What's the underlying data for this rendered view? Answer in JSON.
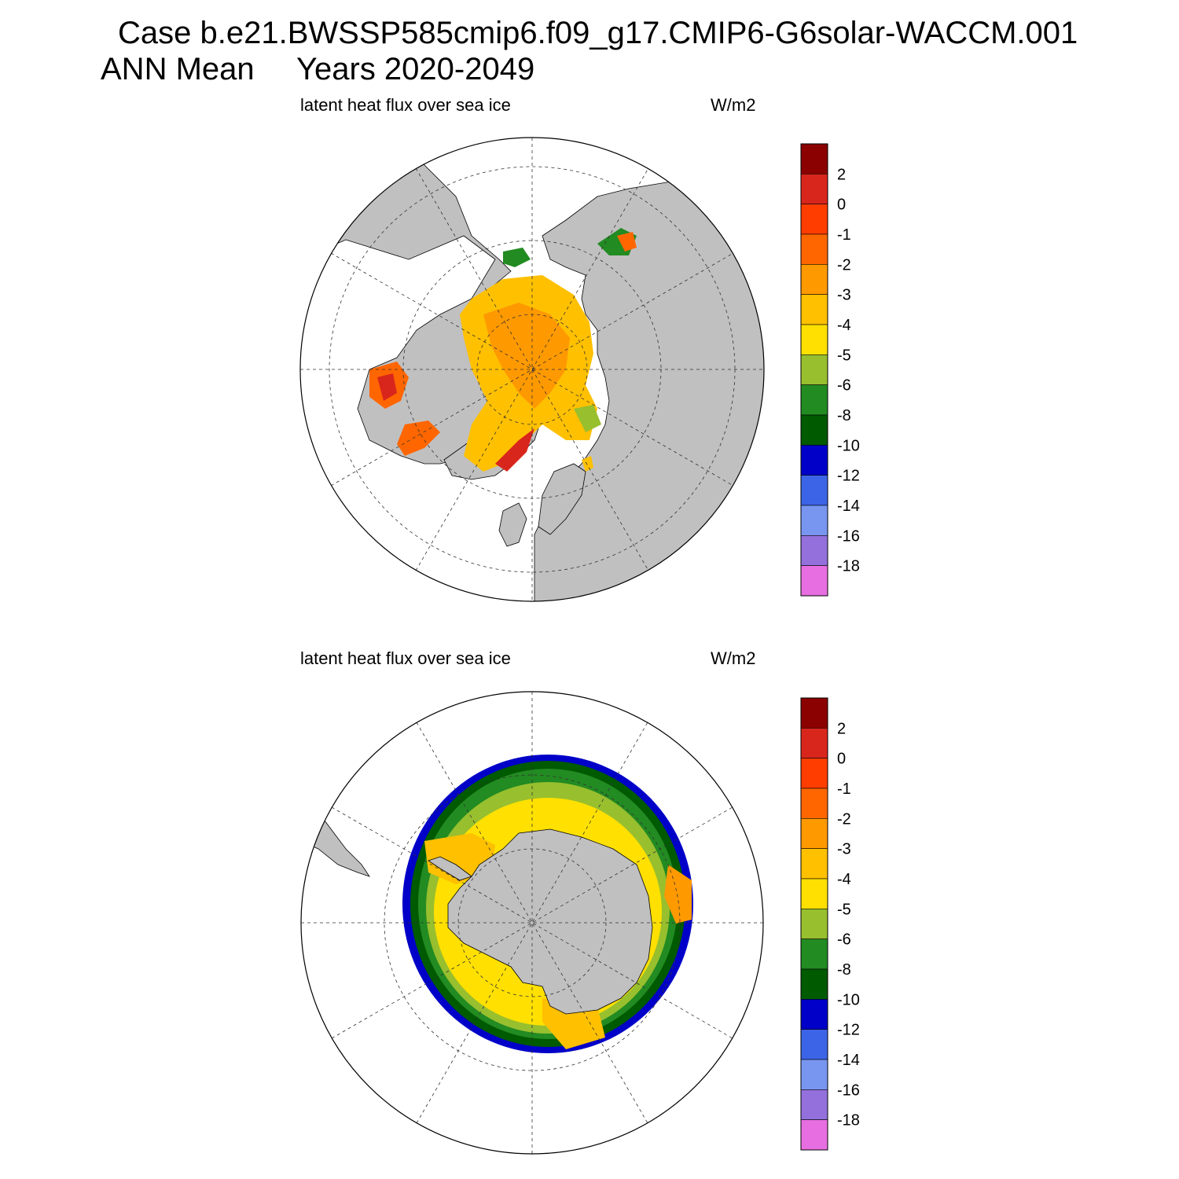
{
  "header": {
    "case_line": "Case b.e21.BWSSP585cmip6.f09_g17.CMIP6-G6solar-WACCM.001",
    "season": "ANN Mean",
    "years": "Years 2020-2049"
  },
  "colors": {
    "land": "#c0c0c0",
    "grid": "#333333"
  },
  "chart_data": [
    {
      "type": "heatmap",
      "projection": "polar stereographic",
      "hemisphere": "north",
      "variable": "latent heat flux over sea ice",
      "units": "W/m2",
      "colorbar": {
        "labels": [
          "2",
          "0",
          "-1",
          "-2",
          "-3",
          "-4",
          "-5",
          "-6",
          "-8",
          "-10",
          "-12",
          "-14",
          "-16",
          "-18"
        ],
        "colors": [
          "#8b0000",
          "#d9261c",
          "#ff3d00",
          "#ff6600",
          "#ff9900",
          "#ffc000",
          "#ffe000",
          "#98bf2e",
          "#228b22",
          "#005a00",
          "#0000c8",
          "#3c64e6",
          "#7896f0",
          "#9370db",
          "#e66ee0"
        ]
      }
    },
    {
      "type": "heatmap",
      "projection": "polar stereographic",
      "hemisphere": "south",
      "variable": "latent heat flux over sea ice",
      "units": "W/m2",
      "colorbar": {
        "labels": [
          "2",
          "0",
          "-1",
          "-2",
          "-3",
          "-4",
          "-5",
          "-6",
          "-8",
          "-10",
          "-12",
          "-14",
          "-16",
          "-18"
        ],
        "colors": [
          "#8b0000",
          "#d9261c",
          "#ff3d00",
          "#ff6600",
          "#ff9900",
          "#ffc000",
          "#ffe000",
          "#98bf2e",
          "#228b22",
          "#005a00",
          "#0000c8",
          "#3c64e6",
          "#7896f0",
          "#9370db",
          "#e66ee0"
        ]
      }
    }
  ]
}
